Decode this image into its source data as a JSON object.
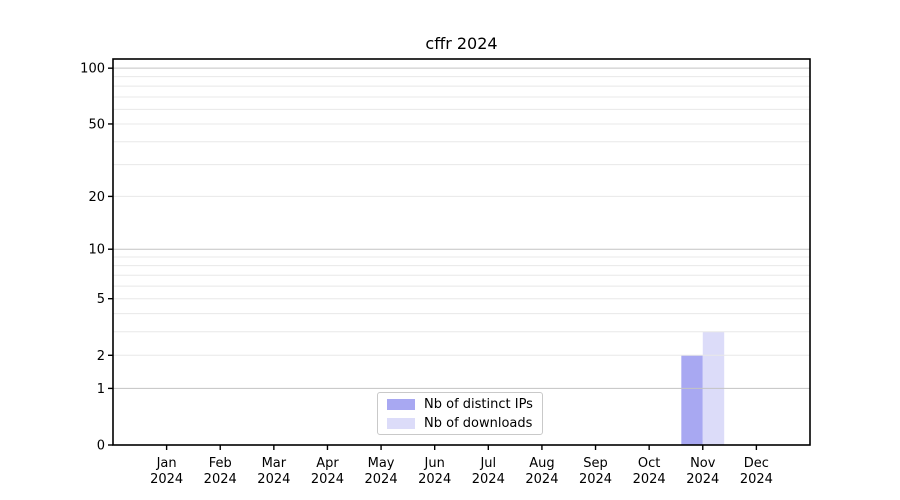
{
  "chart_data": {
    "type": "bar",
    "title": "cffr 2024",
    "categories": [
      "Jan 2024",
      "Feb 2024",
      "Mar 2024",
      "Apr 2024",
      "May 2024",
      "Jun 2024",
      "Jul 2024",
      "Aug 2024",
      "Sep 2024",
      "Oct 2024",
      "Nov 2024",
      "Dec 2024"
    ],
    "series": [
      {
        "name": "Nb of distinct IPs",
        "color": "#a8a8f2",
        "values": [
          0,
          0,
          0,
          0,
          0,
          0,
          0,
          0,
          0,
          0,
          2,
          0
        ]
      },
      {
        "name": "Nb of downloads",
        "color": "#dcdcf9",
        "values": [
          0,
          0,
          0,
          0,
          0,
          0,
          0,
          0,
          0,
          0,
          3,
          0
        ]
      }
    ],
    "xlabel": "",
    "ylabel": "",
    "y_scale": "log1p",
    "ylim": [
      0,
      112
    ],
    "y_tick_labels": [
      0,
      1,
      2,
      5,
      10,
      20,
      50,
      100
    ],
    "y_major_gridlines": [
      1,
      10,
      100
    ],
    "y_minor_gridlines": [
      2,
      3,
      4,
      5,
      6,
      7,
      8,
      9,
      20,
      30,
      40,
      50,
      60,
      70,
      80,
      90
    ],
    "grid": true,
    "legend_position": "lower center inside",
    "colors": {
      "major_grid": "#c3c3c3",
      "minor_grid": "#e8e8e8",
      "spine": "#000000",
      "tick_text": "#000000",
      "background": "#ffffff"
    }
  }
}
